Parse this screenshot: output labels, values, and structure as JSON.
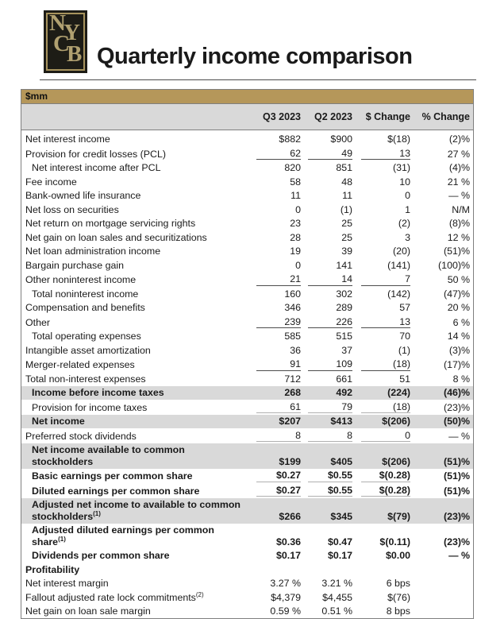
{
  "title": "Quarterly income comparison",
  "logo": {
    "letters": [
      "N",
      "Y",
      "C",
      "B"
    ]
  },
  "colors": {
    "gold": "#b5975a",
    "logo_background": "#1d1c16",
    "logo_letters": "#b0a070",
    "row_highlight": "#d9d9d9",
    "border": "#7f7f7f"
  },
  "table": {
    "units_label": "$mm",
    "columns": [
      "Q3 2023",
      "Q2 2023",
      "$ Change",
      "% Change"
    ],
    "rows": [
      {
        "label": "Net interest income",
        "q3": "$882",
        "q2": "$900",
        "chg": "$(18)",
        "pct": "(2)%"
      },
      {
        "label": "Provision for credit losses (PCL)",
        "q3": "62",
        "q2": "49",
        "chg": "13",
        "pct": "27 %",
        "rule": "dark"
      },
      {
        "label": "Net interest income after PCL",
        "q3": "820",
        "q2": "851",
        "chg": "(31)",
        "pct": "(4)%",
        "indent": true
      },
      {
        "label": "Fee income",
        "q3": "58",
        "q2": "48",
        "chg": "10",
        "pct": "21 %"
      },
      {
        "label": "Bank-owned life insurance",
        "q3": "11",
        "q2": "11",
        "chg": "0",
        "pct": "— %"
      },
      {
        "label": "Net loss on securities",
        "q3": "0",
        "q2": "(1)",
        "chg": "1",
        "pct": "N/M"
      },
      {
        "label": "Net return on mortgage servicing rights",
        "q3": "23",
        "q2": "25",
        "chg": "(2)",
        "pct": "(8)%"
      },
      {
        "label": "Net gain on loan sales and securitizations",
        "q3": "28",
        "q2": "25",
        "chg": "3",
        "pct": "12 %"
      },
      {
        "label": "Net loan administration income",
        "q3": "19",
        "q2": "39",
        "chg": "(20)",
        "pct": "(51)%"
      },
      {
        "label": "Bargain purchase gain",
        "q3": "0",
        "q2": "141",
        "chg": "(141)",
        "pct": "(100)%"
      },
      {
        "label": "Other noninterest income",
        "q3": "21",
        "q2": "14",
        "chg": "7",
        "pct": "50 %",
        "rule": "dark"
      },
      {
        "label": "Total noninterest income",
        "q3": "160",
        "q2": "302",
        "chg": "(142)",
        "pct": "(47)%",
        "indent": true
      },
      {
        "label": "Compensation and benefits",
        "q3": "346",
        "q2": "289",
        "chg": "57",
        "pct": "20 %"
      },
      {
        "label": "Other",
        "q3": "239",
        "q2": "226",
        "chg": "13",
        "pct": "6 %",
        "rule": "dark"
      },
      {
        "label": "Total operating expenses",
        "q3": "585",
        "q2": "515",
        "chg": "70",
        "pct": "14 %",
        "indent": true
      },
      {
        "label": "Intangible asset amortization",
        "q3": "36",
        "q2": "37",
        "chg": "(1)",
        "pct": "(3)%"
      },
      {
        "label": "Merger-related expenses",
        "q3": "91",
        "q2": "109",
        "chg": "(18)",
        "pct": "(17)%",
        "rule": "dark"
      },
      {
        "label": "Total non-interest expenses",
        "q3": "712",
        "q2": "661",
        "chg": "51",
        "pct": "8 %"
      },
      {
        "label": "Income before income taxes",
        "q3": "268",
        "q2": "492",
        "chg": "(224)",
        "pct": "(46)%",
        "indent": true,
        "bold": true,
        "gray": true
      },
      {
        "label": "Provision for income taxes",
        "q3": "61",
        "q2": "79",
        "chg": "(18)",
        "pct": "(23)%",
        "indent": true,
        "rule": "light"
      },
      {
        "label": "Net income",
        "q3": "$207",
        "q2": "$413",
        "chg": "$(206)",
        "pct": "(50)%",
        "indent": true,
        "bold": true,
        "gray": true
      },
      {
        "label": "Preferred stock dividends",
        "q3": "8",
        "q2": "8",
        "chg": "0",
        "pct": "— %",
        "rule": "light"
      },
      {
        "label": "Net income available to common stockholders",
        "q3": "$199",
        "q2": "$405",
        "chg": "$(206)",
        "pct": "(51)%",
        "indent": true,
        "bold": true,
        "gray": true
      },
      {
        "label": "Basic earnings per common share",
        "q3": "$0.27",
        "q2": "$0.55",
        "chg": "$(0.28)",
        "pct": "(51)%",
        "indent": true,
        "bold": true,
        "rule": "light"
      },
      {
        "label": "Diluted earnings per common share",
        "q3": "$0.27",
        "q2": "$0.55",
        "chg": "$(0.28)",
        "pct": "(51)%",
        "indent": true,
        "bold": true,
        "rule": "light"
      },
      {
        "label": "Adjusted net income to available to common stockholders",
        "sup": "(1)",
        "q3": "$266",
        "q2": "$345",
        "chg": "$(79)",
        "pct": "(23)%",
        "indent": true,
        "bold": true,
        "gray": true
      },
      {
        "label": "Adjusted diluted earnings per common share",
        "sup": "(1)",
        "q3": "$0.36",
        "q2": "$0.47",
        "chg": "$(0.11)",
        "pct": "(23)%",
        "indent": true,
        "bold": true
      },
      {
        "label": "Dividends per common share",
        "q3": "$0.17",
        "q2": "$0.17",
        "chg": "$0.00",
        "pct": "— %",
        "indent": true,
        "bold": true
      },
      {
        "label": "Profitability",
        "q3": "",
        "q2": "",
        "chg": "",
        "pct": "",
        "bold": true
      },
      {
        "label": "Net interest margin",
        "q3": "3.27 %",
        "q2": "3.21 %",
        "chg": "6 bps",
        "pct": ""
      },
      {
        "label": "Fallout adjusted rate lock commitments",
        "sup": "(2)",
        "q3": "$4,379",
        "q2": "$4,455",
        "chg": "$(76)",
        "pct": ""
      },
      {
        "label": "Net gain on loan sale margin",
        "q3": "0.59 %",
        "q2": "0.51 %",
        "chg": "8 bps",
        "pct": ""
      }
    ]
  }
}
